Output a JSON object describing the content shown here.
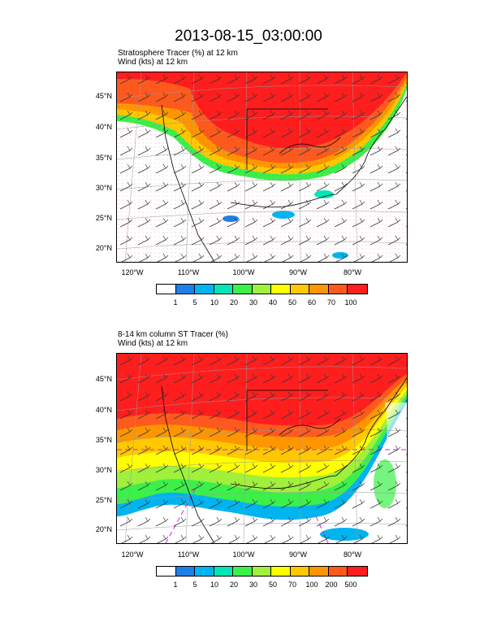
{
  "title": "2013-08-15_03:00:00",
  "panels": [
    {
      "label_line1": "Stratosphere Tracer   (%)     at   12 km",
      "label_line2": "Wind   (kts)     at   12 km",
      "lat_ticks": [
        "45°N",
        "40°N",
        "35°N",
        "30°N",
        "25°N",
        "20°N"
      ],
      "lon_ticks": [
        "120°W",
        "110°W",
        "100°W",
        "90°W",
        "80°W"
      ],
      "colorbar_labels": [
        "1",
        "5",
        "10",
        "20",
        "30",
        "40",
        "50",
        "60",
        "70",
        "100"
      ]
    },
    {
      "label_line1": "8-14 km column ST Tracer   (%)",
      "label_line2": "Wind   (kts)     at   12 km",
      "lat_ticks": [
        "45°N",
        "40°N",
        "35°N",
        "30°N",
        "25°N",
        "20°N"
      ],
      "lon_ticks": [
        "120°W",
        "110°W",
        "100°W",
        "90°W",
        "80°W"
      ],
      "colorbar_labels": [
        "1",
        "5",
        "10",
        "20",
        "30",
        "50",
        "70",
        "100",
        "200",
        "500"
      ]
    }
  ],
  "colorbar_colors": [
    "#ffffff",
    "#1e7fe6",
    "#00b4f0",
    "#00e6b4",
    "#3cf04a",
    "#a0f03c",
    "#ffff00",
    "#ffc800",
    "#ff9600",
    "#ff5a1e",
    "#ff1e1e"
  ]
}
